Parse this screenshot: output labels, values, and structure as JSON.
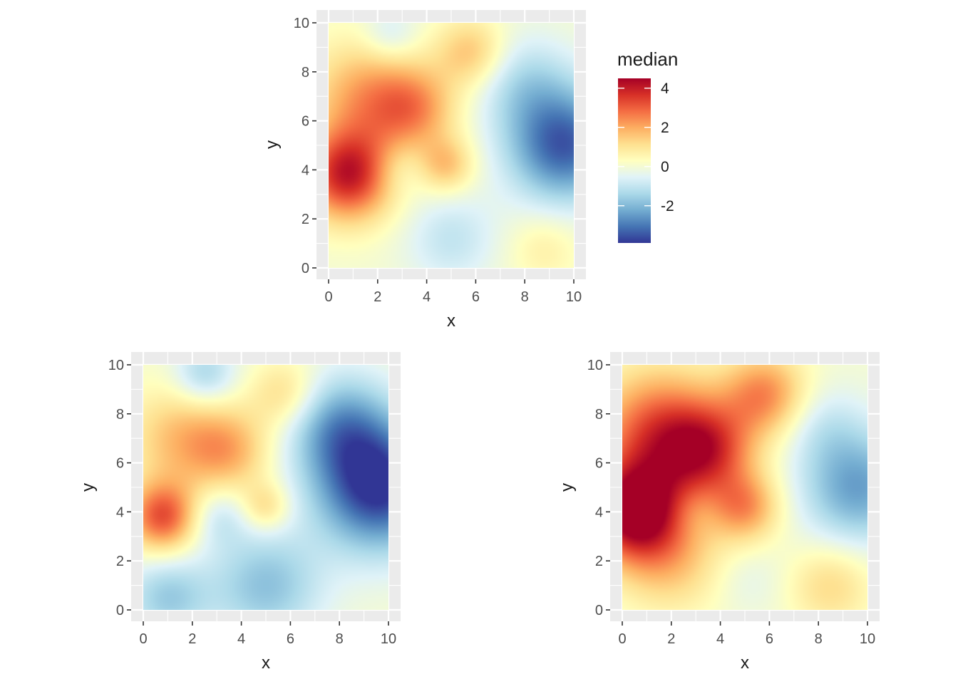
{
  "chart_data": [
    {
      "type": "heatmap",
      "id": "top",
      "xlabel": "x",
      "ylabel": "y",
      "xlim": [
        0,
        10
      ],
      "ylim": [
        0,
        10
      ],
      "x_ticks": [
        "0",
        "2",
        "4",
        "6",
        "8",
        "10"
      ],
      "y_ticks": [
        "0",
        "2",
        "4",
        "6",
        "8",
        "10"
      ],
      "fill": "median",
      "field_features": [
        {
          "x": 0.8,
          "y": 3.8,
          "value": 4.0,
          "sigma": 1.3
        },
        {
          "x": 1.5,
          "y": 7.0,
          "value": 2.0,
          "sigma": 1.6
        },
        {
          "x": 3.5,
          "y": 6.5,
          "value": 2.0,
          "sigma": 1.2
        },
        {
          "x": 5.8,
          "y": 8.8,
          "value": 1.6,
          "sigma": 1.0
        },
        {
          "x": 4.8,
          "y": 4.2,
          "value": 1.6,
          "sigma": 0.8
        },
        {
          "x": 9.6,
          "y": 5.0,
          "value": -3.4,
          "sigma": 1.6
        },
        {
          "x": 8.0,
          "y": 7.5,
          "value": -1.2,
          "sigma": 1.4
        },
        {
          "x": 5.0,
          "y": 1.2,
          "value": -1.0,
          "sigma": 1.3
        },
        {
          "x": 2.5,
          "y": 9.5,
          "value": -0.9,
          "sigma": 0.8
        },
        {
          "x": 2.8,
          "y": 4.0,
          "value": -0.6,
          "sigma": 0.8
        },
        {
          "x": 8.8,
          "y": 0.8,
          "value": 0.7,
          "sigma": 1.0
        }
      ]
    },
    {
      "type": "heatmap",
      "id": "bottom-left",
      "xlabel": "x",
      "ylabel": "y",
      "xlim": [
        0,
        10
      ],
      "ylim": [
        0,
        10
      ],
      "x_ticks": [
        "0",
        "2",
        "4",
        "6",
        "8",
        "10"
      ],
      "y_ticks": [
        "0",
        "2",
        "4",
        "6",
        "8",
        "10"
      ],
      "fill": "median",
      "field_features": [
        {
          "x": 0.8,
          "y": 3.8,
          "value": 3.2,
          "sigma": 1.0
        },
        {
          "x": 1.5,
          "y": 7.0,
          "value": 1.6,
          "sigma": 1.5
        },
        {
          "x": 3.5,
          "y": 6.5,
          "value": 1.7,
          "sigma": 1.2
        },
        {
          "x": 5.8,
          "y": 8.8,
          "value": 1.3,
          "sigma": 1.0
        },
        {
          "x": 5.0,
          "y": 4.2,
          "value": 1.3,
          "sigma": 0.7
        },
        {
          "x": 9.6,
          "y": 5.0,
          "value": -4.0,
          "sigma": 1.8
        },
        {
          "x": 8.0,
          "y": 7.5,
          "value": -2.2,
          "sigma": 1.5
        },
        {
          "x": 5.0,
          "y": 1.0,
          "value": -1.8,
          "sigma": 1.6
        },
        {
          "x": 1.0,
          "y": 0.5,
          "value": -1.6,
          "sigma": 1.2
        },
        {
          "x": 2.5,
          "y": 9.6,
          "value": -1.5,
          "sigma": 0.9
        },
        {
          "x": 3.0,
          "y": 3.8,
          "value": -1.0,
          "sigma": 0.9
        }
      ]
    },
    {
      "type": "heatmap",
      "id": "bottom-right",
      "xlabel": "x",
      "ylabel": "y",
      "xlim": [
        0,
        10
      ],
      "ylim": [
        0,
        10
      ],
      "x_ticks": [
        "0",
        "2",
        "4",
        "6",
        "8",
        "10"
      ],
      "y_ticks": [
        "0",
        "2",
        "4",
        "6",
        "8",
        "10"
      ],
      "fill": "median",
      "field_features": [
        {
          "x": 0.5,
          "y": 4.0,
          "value": 4.8,
          "sigma": 1.4
        },
        {
          "x": 1.5,
          "y": 7.2,
          "value": 3.2,
          "sigma": 1.8
        },
        {
          "x": 3.5,
          "y": 6.5,
          "value": 2.8,
          "sigma": 1.3
        },
        {
          "x": 5.8,
          "y": 8.8,
          "value": 2.4,
          "sigma": 1.2
        },
        {
          "x": 5.0,
          "y": 4.2,
          "value": 2.2,
          "sigma": 1.0
        },
        {
          "x": 2.0,
          "y": 2.0,
          "value": 1.4,
          "sigma": 1.5
        },
        {
          "x": 9.6,
          "y": 5.0,
          "value": -2.4,
          "sigma": 1.6
        },
        {
          "x": 8.2,
          "y": 7.5,
          "value": -0.8,
          "sigma": 1.2
        },
        {
          "x": 5.2,
          "y": 1.2,
          "value": -0.4,
          "sigma": 1.0
        },
        {
          "x": 8.5,
          "y": 1.0,
          "value": 1.2,
          "sigma": 1.2
        },
        {
          "x": 2.8,
          "y": 4.0,
          "value": -0.3,
          "sigma": 0.7
        }
      ]
    }
  ],
  "legend": {
    "title": "median",
    "breaks": [
      4,
      2,
      0,
      -2
    ],
    "labels": [
      "4",
      "2",
      "0",
      "-2"
    ],
    "range": [
      -3.9,
      4.5
    ],
    "palette": [
      "#313695",
      "#4575B4",
      "#74ADD1",
      "#ABD9E9",
      "#E0F3F8",
      "#FFFFBF",
      "#FEE090",
      "#FDAE61",
      "#F46D43",
      "#D73027",
      "#A50026"
    ]
  },
  "colors": {
    "panel_background": "#EBEBEB",
    "grid_line": "#FFFFFF",
    "tick_label": "#4D4D4D",
    "axis_title": "#1A1A1A"
  }
}
